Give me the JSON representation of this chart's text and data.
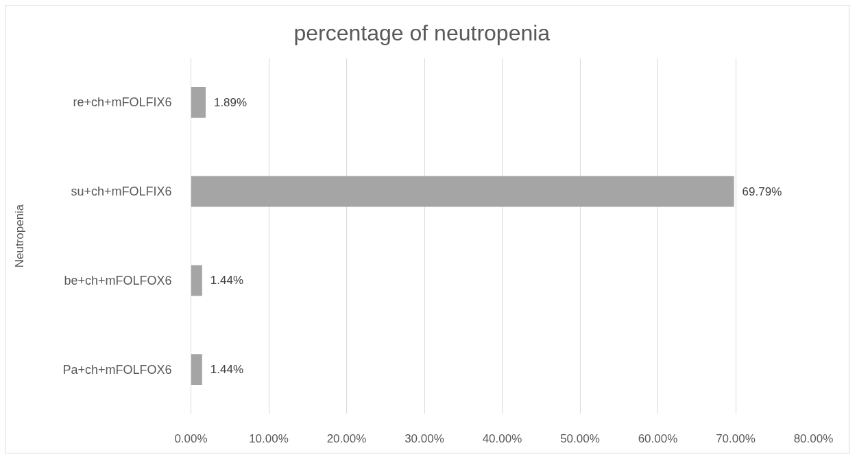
{
  "chart_data": {
    "type": "bar",
    "orientation": "horizontal",
    "title": "percentage of neutropenia",
    "ylabel": "Neutropenia",
    "categories": [
      "re+ch+mFOLFIX6",
      "su+ch+mFOLFIX6",
      "be+ch+mFOLFOX6",
      "Pa+ch+mFOLFOX6"
    ],
    "values": [
      1.89,
      69.79,
      1.44,
      1.44
    ],
    "color": "#a5a5a5",
    "value_labels": [
      "1.89%",
      "69.79%",
      "1.44%",
      "1.44%"
    ],
    "xlim": [
      0,
      80
    ],
    "xticks": [
      {
        "value": 0,
        "label": "0.00%"
      },
      {
        "value": 10,
        "label": "10.00%"
      },
      {
        "value": 20,
        "label": "20.00%"
      },
      {
        "value": 30,
        "label": "30.00%"
      },
      {
        "value": 40,
        "label": "40.00%"
      },
      {
        "value": 50,
        "label": "50.00%"
      },
      {
        "value": 60,
        "label": "60.00%"
      },
      {
        "value": 70,
        "label": "70.00%"
      },
      {
        "value": 80,
        "label": "80.00%"
      }
    ],
    "grid": "x"
  }
}
